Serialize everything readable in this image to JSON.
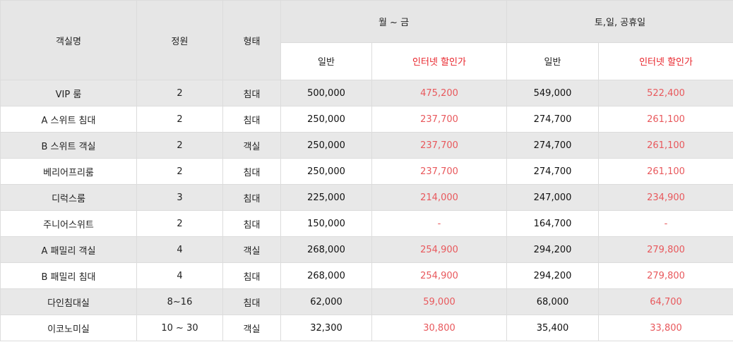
{
  "header": {
    "room_name": "객실명",
    "capacity": "정원",
    "type": "형태",
    "weekday": "월 ~ 금",
    "weekend": "토,일, 공휴일",
    "regular": "일반",
    "internet": "인터넷 할인가"
  },
  "rows": [
    {
      "name": "VIP 룸",
      "capacity": "2",
      "type": "침대",
      "wk_reg": "500,000",
      "wk_net": "475,200",
      "we_reg": "549,000",
      "we_net": "522,400"
    },
    {
      "name": "A 스위트 침대",
      "capacity": "2",
      "type": "침대",
      "wk_reg": "250,000",
      "wk_net": "237,700",
      "we_reg": "274,700",
      "we_net": "261,100"
    },
    {
      "name": "B 스위트 객실",
      "capacity": "2",
      "type": "객실",
      "wk_reg": "250,000",
      "wk_net": "237,700",
      "we_reg": "274,700",
      "we_net": "261,100"
    },
    {
      "name": "베리어프리룸",
      "capacity": "2",
      "type": "침대",
      "wk_reg": "250,000",
      "wk_net": "237,700",
      "we_reg": "274,700",
      "we_net": "261,100"
    },
    {
      "name": "디럭스룸",
      "capacity": "3",
      "type": "침대",
      "wk_reg": "225,000",
      "wk_net": "214,000",
      "we_reg": "247,000",
      "we_net": "234,900"
    },
    {
      "name": "주니어스위트",
      "capacity": "2",
      "type": "침대",
      "wk_reg": "150,000",
      "wk_net": "-",
      "we_reg": "164,700",
      "we_net": "-"
    },
    {
      "name": "A 패밀리 객실",
      "capacity": "4",
      "type": "객실",
      "wk_reg": "268,000",
      "wk_net": "254,900",
      "we_reg": "294,200",
      "we_net": "279,800"
    },
    {
      "name": "B 패밀리 침대",
      "capacity": "4",
      "type": "침대",
      "wk_reg": "268,000",
      "wk_net": "254,900",
      "we_reg": "294,200",
      "we_net": "279,800"
    },
    {
      "name": "다인침대실",
      "capacity": "8~16",
      "type": "침대",
      "wk_reg": "62,000",
      "wk_net": "59,000",
      "we_reg": "68,000",
      "we_net": "64,700"
    },
    {
      "name": "이코노미실",
      "capacity": "10 ~ 30",
      "type": "객실",
      "wk_reg": "32,300",
      "wk_net": "30,800",
      "we_reg": "35,400",
      "we_net": "33,800"
    }
  ],
  "colors": {
    "header_bg": "#e6e6e6",
    "shaded_row_bg": "#e8e8e8",
    "discount_text": "#e8585c",
    "header_discount_text": "#e8232a"
  }
}
